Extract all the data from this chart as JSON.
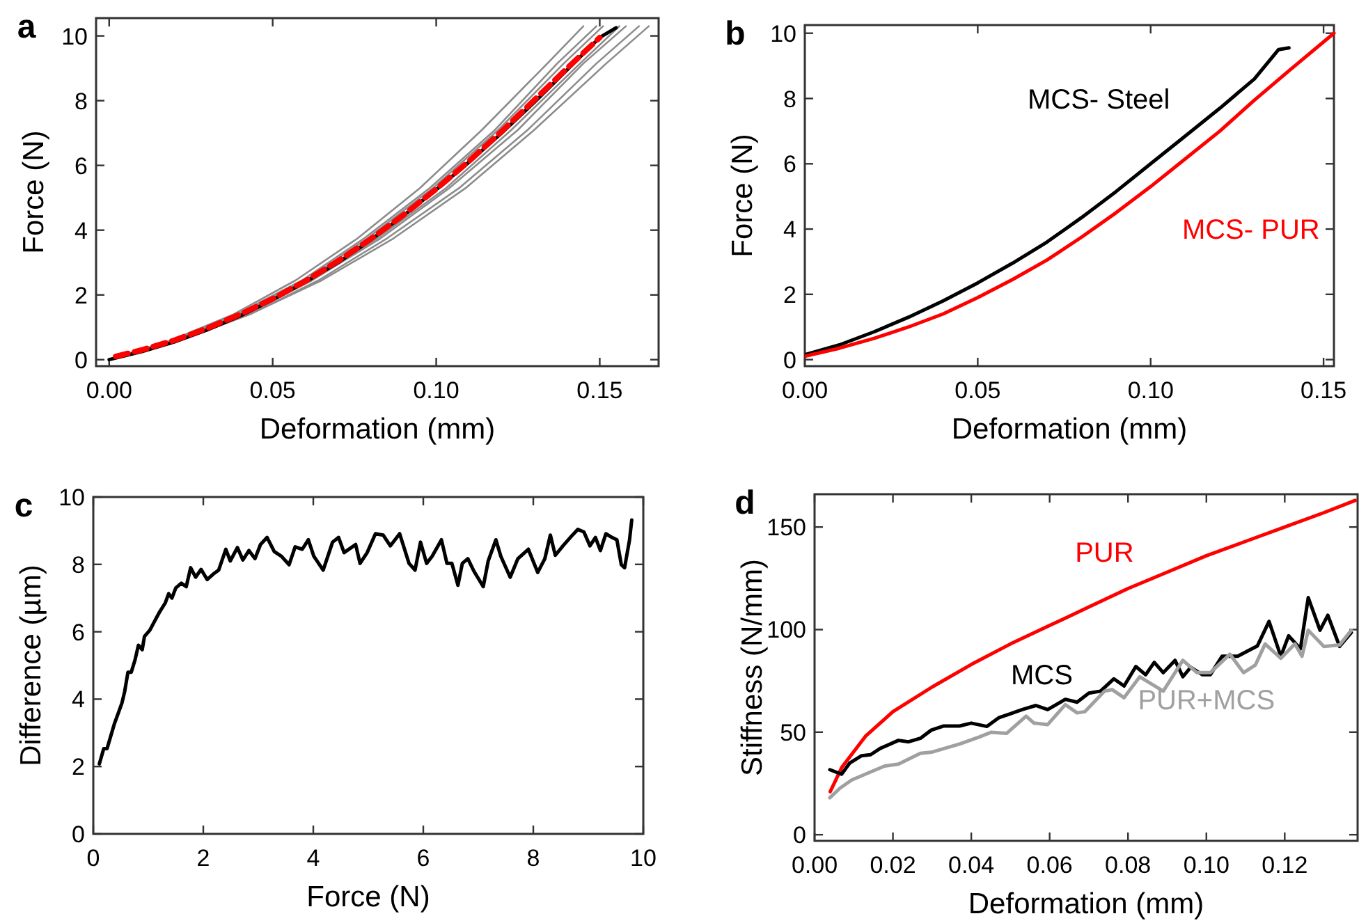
{
  "chart_data": [
    {
      "type": "line",
      "title": "a",
      "xlabel": "Deformation (mm)",
      "ylabel": "Force (N)",
      "xlim": [
        -0.004,
        0.168
      ],
      "xticks": [
        {
          "value": 0,
          "label": "0.00"
        },
        {
          "value": 0.05,
          "label": "0.05"
        },
        {
          "value": 0.1,
          "label": "0.10"
        },
        {
          "value": 0.15,
          "label": "0.15"
        }
      ],
      "ylim": [
        -0.2,
        10.55
      ],
      "yticks": [
        0,
        2,
        4,
        6,
        8,
        10
      ],
      "series": [
        {
          "color": "#8c8c8c",
          "x": [
            0,
            0.019,
            0.038,
            0.057,
            0.076,
            0.095,
            0.114,
            0.134,
            0.145
          ],
          "values": [
            0,
            0.6,
            1.4,
            2.45,
            3.75,
            5.3,
            7.1,
            9.15,
            10.3
          ]
        },
        {
          "color": "#8c8c8c",
          "x": [
            0,
            0.02,
            0.039,
            0.059,
            0.078,
            0.098,
            0.118,
            0.137,
            0.149
          ],
          "values": [
            0,
            0.6,
            1.4,
            2.45,
            3.75,
            5.3,
            7.1,
            9.15,
            10.3
          ]
        },
        {
          "color": "#8c8c8c",
          "x": [
            0,
            0.02,
            0.04,
            0.06,
            0.079,
            0.099,
            0.119,
            0.139,
            0.151
          ],
          "values": [
            0,
            0.6,
            1.4,
            2.45,
            3.75,
            5.3,
            7.1,
            9.15,
            10.3
          ]
        },
        {
          "color": "#8c8c8c",
          "x": [
            0,
            0.021,
            0.041,
            0.062,
            0.082,
            0.103,
            0.123,
            0.144,
            0.156
          ],
          "values": [
            0,
            0.6,
            1.4,
            2.45,
            3.75,
            5.3,
            7.1,
            9.15,
            10.3
          ]
        },
        {
          "color": "#8c8c8c",
          "x": [
            0,
            0.021,
            0.042,
            0.062,
            0.083,
            0.104,
            0.125,
            0.145,
            0.158
          ],
          "values": [
            0,
            0.6,
            1.4,
            2.45,
            3.75,
            5.3,
            7.1,
            9.15,
            10.3
          ]
        },
        {
          "color": "#8c8c8c",
          "x": [
            0,
            0.021,
            0.043,
            0.064,
            0.085,
            0.107,
            0.128,
            0.149,
            0.162
          ],
          "values": [
            0,
            0.6,
            1.4,
            2.45,
            3.75,
            5.3,
            7.1,
            9.15,
            10.3
          ]
        },
        {
          "color": "#8c8c8c",
          "x": [
            0,
            0.022,
            0.043,
            0.065,
            0.087,
            0.109,
            0.13,
            0.152,
            0.165
          ],
          "values": [
            0,
            0.6,
            1.4,
            2.45,
            3.75,
            5.3,
            7.1,
            9.15,
            10.3
          ]
        },
        {
          "color": "#000000",
          "x": [
            0,
            0.01,
            0.02,
            0.03,
            0.04,
            0.05,
            0.06,
            0.07,
            0.08,
            0.09,
            0.1,
            0.11,
            0.12,
            0.13,
            0.14,
            0.15,
            0.155
          ],
          "values": [
            0,
            0.25,
            0.55,
            0.92,
            1.35,
            1.85,
            2.4,
            3.0,
            3.7,
            4.45,
            5.25,
            6.1,
            7.0,
            7.95,
            8.95,
            9.95,
            10.25
          ]
        },
        {
          "color": "#ff0000",
          "line_style": "dashed",
          "x": [
            0.002,
            0.01,
            0.02,
            0.03,
            0.04,
            0.05,
            0.06,
            0.07,
            0.08,
            0.09,
            0.1,
            0.11,
            0.12,
            0.13,
            0.14,
            0.15
          ],
          "values": [
            0.1,
            0.3,
            0.6,
            0.97,
            1.4,
            1.88,
            2.43,
            3.05,
            3.73,
            4.47,
            5.27,
            6.13,
            7.05,
            8.02,
            9.0,
            9.95
          ]
        }
      ]
    },
    {
      "type": "line",
      "title": "b",
      "xlabel": "Deformation (mm)",
      "ylabel": "Force (N)",
      "xlim": [
        0,
        0.153
      ],
      "xticks": [
        {
          "value": 0,
          "label": "0.00"
        },
        {
          "value": 0.05,
          "label": "0.05"
        },
        {
          "value": 0.1,
          "label": "0.10"
        },
        {
          "value": 0.15,
          "label": "0.15"
        }
      ],
      "ylim": [
        -0.2,
        10.25
      ],
      "yticks": [
        0,
        2,
        4,
        6,
        8,
        10
      ],
      "series": [
        {
          "name": "MCS- Steel",
          "color": "#000000",
          "x": [
            0,
            0.01,
            0.02,
            0.03,
            0.04,
            0.05,
            0.06,
            0.07,
            0.08,
            0.09,
            0.1,
            0.11,
            0.12,
            0.13,
            0.137,
            0.14
          ],
          "values": [
            0.15,
            0.45,
            0.85,
            1.3,
            1.8,
            2.35,
            2.95,
            3.6,
            4.35,
            5.15,
            6.0,
            6.85,
            7.7,
            8.6,
            9.5,
            9.55
          ]
        },
        {
          "name": "MCS- PUR",
          "color": "#ff0000",
          "x": [
            0,
            0.01,
            0.02,
            0.03,
            0.04,
            0.05,
            0.06,
            0.07,
            0.08,
            0.09,
            0.1,
            0.11,
            0.12,
            0.13,
            0.14,
            0.153
          ],
          "values": [
            0.1,
            0.35,
            0.65,
            1.0,
            1.4,
            1.9,
            2.45,
            3.05,
            3.75,
            4.5,
            5.3,
            6.15,
            7.0,
            7.95,
            8.85,
            10.0
          ]
        }
      ]
    },
    {
      "type": "line",
      "title": "c",
      "xlabel": "Force (N)",
      "ylabel": "Difference (µm)",
      "xlim": [
        0,
        10
      ],
      "xticks": [
        0,
        2,
        4,
        6,
        8,
        10
      ],
      "ylim": [
        0,
        10
      ],
      "yticks": [
        0,
        2,
        4,
        6,
        8,
        10
      ],
      "series": [
        {
          "color": "#000000",
          "x": [
            0.11,
            0.19,
            0.25,
            0.38,
            0.52,
            0.57,
            0.63,
            0.69,
            0.76,
            0.82,
            0.89,
            0.93,
            1.03,
            1.12,
            1.21,
            1.31,
            1.37,
            1.43,
            1.5,
            1.6,
            1.69,
            1.77,
            1.86,
            1.96,
            2.07,
            2.18,
            2.28,
            2.41,
            2.49,
            2.62,
            2.72,
            2.83,
            2.94,
            3.04,
            3.16,
            3.29,
            3.42,
            3.56,
            3.67,
            3.8,
            3.91,
            4.01,
            4.18,
            4.35,
            4.46,
            4.56,
            4.77,
            4.85,
            4.98,
            5.13,
            5.27,
            5.4,
            5.57,
            5.74,
            5.85,
            5.95,
            6.06,
            6.16,
            6.33,
            6.43,
            6.52,
            6.63,
            6.71,
            6.81,
            6.92,
            7.09,
            7.18,
            7.32,
            7.41,
            7.58,
            7.72,
            7.91,
            8.08,
            8.21,
            8.31,
            8.4,
            8.54,
            8.69,
            8.81,
            8.92,
            9.03,
            9.13,
            9.22,
            9.32,
            9.43,
            9.52,
            9.6,
            9.66,
            9.75,
            9.79
          ],
          "values": [
            2.08,
            2.53,
            2.53,
            3.25,
            3.88,
            4.22,
            4.8,
            4.8,
            5.17,
            5.6,
            5.47,
            5.86,
            6.05,
            6.33,
            6.6,
            6.86,
            7.13,
            7.0,
            7.3,
            7.44,
            7.34,
            7.9,
            7.62,
            7.85,
            7.55,
            7.71,
            7.83,
            8.45,
            8.1,
            8.5,
            8.13,
            8.41,
            8.17,
            8.59,
            8.8,
            8.38,
            8.24,
            7.99,
            8.52,
            8.45,
            8.73,
            8.24,
            7.83,
            8.66,
            8.8,
            8.35,
            8.59,
            8.03,
            8.35,
            8.91,
            8.87,
            8.55,
            8.91,
            8.03,
            7.83,
            8.66,
            8.03,
            8.24,
            8.73,
            8.03,
            8.03,
            7.38,
            8.03,
            8.17,
            7.8,
            7.34,
            8.1,
            8.73,
            8.24,
            7.62,
            8.17,
            8.45,
            7.76,
            8.17,
            8.87,
            8.27,
            8.55,
            8.83,
            9.04,
            8.96,
            8.55,
            8.8,
            8.41,
            8.91,
            8.8,
            8.73,
            7.99,
            7.9,
            8.73,
            9.32
          ]
        }
      ]
    },
    {
      "type": "line",
      "title": "d",
      "xlabel": "Deformation (mm)",
      "ylabel": "Stiffness (N/mm)",
      "xlim": [
        0,
        0.1386
      ],
      "xticks": [
        {
          "value": 0,
          "label": "0.00"
        },
        {
          "value": 0.02,
          "label": "0.02"
        },
        {
          "value": 0.04,
          "label": "0.04"
        },
        {
          "value": 0.06,
          "label": "0.06"
        },
        {
          "value": 0.08,
          "label": "0.08"
        },
        {
          "value": 0.1,
          "label": "0.10"
        },
        {
          "value": 0.12,
          "label": "0.12"
        }
      ],
      "ylim": [
        -3,
        166
      ],
      "yticks": [
        0,
        50,
        100,
        150
      ],
      "series": [
        {
          "name": "PUR",
          "color": "#ff0000",
          "x": [
            0.004,
            0.007,
            0.013,
            0.02,
            0.03,
            0.04,
            0.05,
            0.06,
            0.07,
            0.08,
            0.09,
            0.1,
            0.11,
            0.12,
            0.13,
            0.138
          ],
          "values": [
            21,
            33,
            48,
            60,
            72,
            83,
            93,
            102,
            111,
            120,
            128,
            136,
            143,
            150,
            157,
            163
          ]
        },
        {
          "name": "MCS",
          "color": "#000000",
          "x": [
            0.0039,
            0.0069,
            0.009,
            0.012,
            0.0143,
            0.0167,
            0.0214,
            0.024,
            0.027,
            0.0298,
            0.033,
            0.037,
            0.04,
            0.044,
            0.047,
            0.05,
            0.053,
            0.0565,
            0.0595,
            0.064,
            0.067,
            0.07,
            0.073,
            0.0764,
            0.079,
            0.082,
            0.0845,
            0.0867,
            0.089,
            0.092,
            0.094,
            0.096,
            0.099,
            0.101,
            0.104,
            0.108,
            0.113,
            0.116,
            0.119,
            0.121,
            0.124,
            0.126,
            0.129,
            0.131,
            0.134,
            0.137
          ],
          "values": [
            31.7,
            29.5,
            35,
            38.5,
            39,
            42,
            46,
            45.3,
            47,
            51,
            53,
            53,
            54.4,
            52.8,
            57,
            59,
            61,
            63,
            61,
            66,
            64.6,
            69,
            70,
            76,
            72.5,
            82,
            78,
            84,
            79,
            85,
            77,
            81.6,
            78,
            78,
            87,
            87,
            92,
            104,
            87,
            97,
            90.6,
            115.6,
            99.7,
            107,
            91.8,
            98.6
          ]
        },
        {
          "name": "PUR+MCS",
          "color": "#a0a0a0",
          "x": [
            0.0039,
            0.0065,
            0.0095,
            0.0143,
            0.0179,
            0.0214,
            0.027,
            0.03,
            0.037,
            0.042,
            0.045,
            0.049,
            0.054,
            0.056,
            0.0595,
            0.064,
            0.067,
            0.069,
            0.074,
            0.076,
            0.079,
            0.083,
            0.089,
            0.094,
            0.0976,
            0.101,
            0.106,
            0.1095,
            0.1125,
            0.115,
            0.119,
            0.1226,
            0.1244,
            0.126,
            0.13,
            0.134,
            0.137
          ],
          "values": [
            18,
            22.7,
            26.7,
            30.6,
            33.5,
            34.4,
            39.7,
            40.3,
            44.2,
            47.6,
            49.9,
            49.4,
            57.8,
            54.4,
            53.7,
            63.4,
            59.4,
            60,
            70,
            70.7,
            66.8,
            77,
            70,
            85,
            79,
            79,
            88,
            79,
            82.7,
            93,
            86,
            93,
            87,
            99.7,
            91.8,
            92.5,
            99.7
          ]
        }
      ]
    }
  ]
}
